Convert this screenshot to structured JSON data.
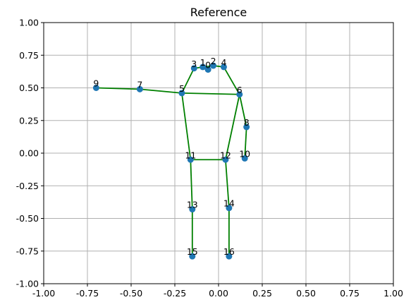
{
  "chart_data": {
    "type": "scatter",
    "title": "Reference",
    "xlabel": "",
    "ylabel": "",
    "xlim": [
      -1.0,
      1.0
    ],
    "ylim": [
      -1.0,
      1.0
    ],
    "grid": true,
    "xticks": [
      "-1.00",
      "-0.75",
      "-0.50",
      "-0.25",
      "0.00",
      "0.25",
      "0.50",
      "0.75",
      "1.00"
    ],
    "yticks": [
      "-1.00",
      "-0.75",
      "-0.50",
      "-0.25",
      "0.00",
      "0.25",
      "0.50",
      "0.75",
      "1.00"
    ],
    "xtick_values": [
      -1.0,
      -0.75,
      -0.5,
      -0.25,
      0.0,
      0.25,
      0.5,
      0.75,
      1.0
    ],
    "ytick_values": [
      -1.0,
      -0.75,
      -0.5,
      -0.25,
      0.0,
      0.25,
      0.5,
      0.75,
      1.0
    ],
    "point_color": "#1f77b4",
    "line_color": "#008000",
    "points": [
      {
        "label": "0",
        "x": -0.06,
        "y": 0.64
      },
      {
        "label": "1",
        "x": -0.09,
        "y": 0.66
      },
      {
        "label": "2",
        "x": -0.03,
        "y": 0.67
      },
      {
        "label": "3",
        "x": -0.14,
        "y": 0.65
      },
      {
        "label": "4",
        "x": 0.03,
        "y": 0.66
      },
      {
        "label": "5",
        "x": -0.21,
        "y": 0.46
      },
      {
        "label": "6",
        "x": 0.12,
        "y": 0.45
      },
      {
        "label": "7",
        "x": -0.45,
        "y": 0.49
      },
      {
        "label": "8",
        "x": 0.16,
        "y": 0.2
      },
      {
        "label": "9",
        "x": -0.7,
        "y": 0.5
      },
      {
        "label": "10",
        "x": 0.15,
        "y": -0.04
      },
      {
        "label": "11",
        "x": -0.16,
        "y": -0.05
      },
      {
        "label": "12",
        "x": 0.04,
        "y": -0.05
      },
      {
        "label": "13",
        "x": -0.15,
        "y": -0.43
      },
      {
        "label": "14",
        "x": 0.06,
        "y": -0.42
      },
      {
        "label": "15",
        "x": -0.15,
        "y": -0.79
      },
      {
        "label": "16",
        "x": 0.06,
        "y": -0.79
      }
    ],
    "edges": [
      [
        9,
        7
      ],
      [
        7,
        5
      ],
      [
        5,
        3
      ],
      [
        3,
        2
      ],
      [
        2,
        4
      ],
      [
        4,
        6
      ],
      [
        5,
        6
      ],
      [
        6,
        8
      ],
      [
        8,
        10
      ],
      [
        5,
        11
      ],
      [
        6,
        12
      ],
      [
        11,
        12
      ],
      [
        11,
        13
      ],
      [
        13,
        15
      ],
      [
        12,
        14
      ],
      [
        14,
        16
      ]
    ]
  }
}
